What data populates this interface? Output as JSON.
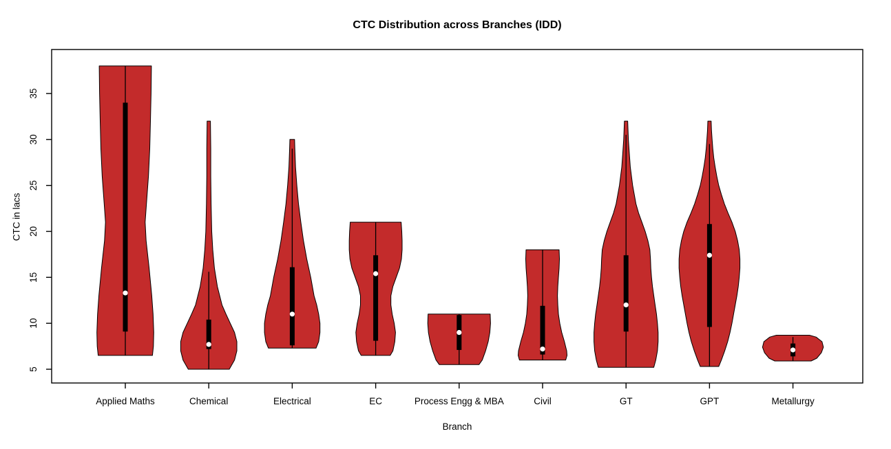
{
  "title": "CTC Distribution across Branches (IDD)",
  "colors": {
    "violin_fill": "#C32B2B",
    "violin_stroke": "#000000",
    "box": "#000000",
    "whisker": "#000000",
    "median_dot": "#FFFFFF",
    "axis": "#000000",
    "background": "#FFFFFF"
  },
  "chart_data": {
    "type": "violin",
    "title": "CTC Distribution across Branches (IDD)",
    "xlabel": "Branch",
    "ylabel": "CTC in lacs",
    "y_ticks": [
      5,
      10,
      15,
      20,
      25,
      30,
      35
    ],
    "ylim": [
      3.5,
      39.5
    ],
    "grid": false,
    "legend": "none",
    "categories": [
      "Applied Maths",
      "Chemical",
      "Electrical",
      "EC",
      "Process Engg & MBA",
      "Civil",
      "GT",
      "GPT",
      "Metallurgy"
    ],
    "series": [
      {
        "name": "Applied Maths",
        "min": 6.5,
        "max": 38,
        "q1": 9.1,
        "median": 13.3,
        "q3": 34,
        "whisker_low": 6.5,
        "whisker_high": 38,
        "density_profile": [
          [
            6.5,
            0.82
          ],
          [
            7.5,
            0.85
          ],
          [
            9,
            0.86
          ],
          [
            11,
            0.84
          ],
          [
            13,
            0.8
          ],
          [
            16,
            0.72
          ],
          [
            19,
            0.63
          ],
          [
            21,
            0.6
          ],
          [
            23,
            0.64
          ],
          [
            26,
            0.7
          ],
          [
            29,
            0.74
          ],
          [
            32,
            0.76
          ],
          [
            35,
            0.78
          ],
          [
            38,
            0.79
          ]
        ]
      },
      {
        "name": "Chemical",
        "min": 5,
        "max": 32,
        "q1": 7.2,
        "median": 7.7,
        "q3": 10.4,
        "whisker_low": 5,
        "whisker_high": 15.6,
        "density_profile": [
          [
            5,
            0.62
          ],
          [
            6,
            0.78
          ],
          [
            7,
            0.85
          ],
          [
            8,
            0.85
          ],
          [
            9,
            0.78
          ],
          [
            10,
            0.65
          ],
          [
            11,
            0.52
          ],
          [
            12,
            0.4
          ],
          [
            14,
            0.26
          ],
          [
            16,
            0.17
          ],
          [
            18,
            0.12
          ],
          [
            20,
            0.09
          ],
          [
            23,
            0.07
          ],
          [
            26,
            0.06
          ],
          [
            29,
            0.06
          ],
          [
            32,
            0.05
          ]
        ]
      },
      {
        "name": "Electrical",
        "min": 7.3,
        "max": 30,
        "q1": 7.6,
        "median": 11,
        "q3": 16.1,
        "whisker_low": 7.3,
        "whisker_high": 29,
        "density_profile": [
          [
            7.3,
            0.72
          ],
          [
            8,
            0.8
          ],
          [
            9,
            0.84
          ],
          [
            10,
            0.84
          ],
          [
            11,
            0.8
          ],
          [
            12,
            0.74
          ],
          [
            13,
            0.66
          ],
          [
            15,
            0.56
          ],
          [
            17,
            0.44
          ],
          [
            19,
            0.34
          ],
          [
            21,
            0.26
          ],
          [
            23,
            0.19
          ],
          [
            25,
            0.14
          ],
          [
            27,
            0.1
          ],
          [
            29,
            0.08
          ],
          [
            30,
            0.07
          ]
        ]
      },
      {
        "name": "EC",
        "min": 6.5,
        "max": 21,
        "q1": 8.1,
        "median": 15.4,
        "q3": 17.4,
        "whisker_low": 6.5,
        "whisker_high": 21,
        "density_profile": [
          [
            6.5,
            0.44
          ],
          [
            7,
            0.52
          ],
          [
            8,
            0.58
          ],
          [
            9,
            0.6
          ],
          [
            10,
            0.56
          ],
          [
            11,
            0.5
          ],
          [
            12,
            0.46
          ],
          [
            13,
            0.46
          ],
          [
            14,
            0.52
          ],
          [
            15,
            0.62
          ],
          [
            16,
            0.72
          ],
          [
            17,
            0.78
          ],
          [
            18,
            0.8
          ],
          [
            19,
            0.8
          ],
          [
            20,
            0.79
          ],
          [
            21,
            0.77
          ]
        ]
      },
      {
        "name": "Process Engg & MBA",
        "min": 5.5,
        "max": 11,
        "q1": 7.1,
        "median": 9,
        "q3": 10.9,
        "whisker_low": 5.5,
        "whisker_high": 11,
        "density_profile": [
          [
            5.5,
            0.6
          ],
          [
            6,
            0.7
          ],
          [
            7,
            0.8
          ],
          [
            8,
            0.88
          ],
          [
            9,
            0.93
          ],
          [
            10,
            0.95
          ],
          [
            11,
            0.94
          ]
        ]
      },
      {
        "name": "Civil",
        "min": 6,
        "max": 18,
        "q1": 6.6,
        "median": 7.2,
        "q3": 11.9,
        "whisker_low": 6,
        "whisker_high": 18,
        "density_profile": [
          [
            6,
            0.7
          ],
          [
            6.5,
            0.74
          ],
          [
            7,
            0.73
          ],
          [
            8,
            0.66
          ],
          [
            9,
            0.58
          ],
          [
            10,
            0.52
          ],
          [
            11,
            0.48
          ],
          [
            12,
            0.46
          ],
          [
            13,
            0.45
          ],
          [
            14,
            0.46
          ],
          [
            15,
            0.48
          ],
          [
            16,
            0.5
          ],
          [
            17,
            0.51
          ],
          [
            18,
            0.5
          ]
        ]
      },
      {
        "name": "GT",
        "min": 5.2,
        "max": 32,
        "q1": 9.1,
        "median": 12,
        "q3": 17.4,
        "whisker_low": 5.2,
        "whisker_high": 30.5,
        "density_profile": [
          [
            5.2,
            0.84
          ],
          [
            6,
            0.9
          ],
          [
            7,
            0.95
          ],
          [
            8,
            0.97
          ],
          [
            9,
            0.97
          ],
          [
            10,
            0.95
          ],
          [
            11,
            0.92
          ],
          [
            12,
            0.88
          ],
          [
            13,
            0.84
          ],
          [
            14,
            0.8
          ],
          [
            15,
            0.77
          ],
          [
            16,
            0.75
          ],
          [
            17,
            0.74
          ],
          [
            18,
            0.72
          ],
          [
            19,
            0.66
          ],
          [
            20,
            0.58
          ],
          [
            21,
            0.48
          ],
          [
            22,
            0.38
          ],
          [
            23,
            0.3
          ],
          [
            25,
            0.2
          ],
          [
            27,
            0.13
          ],
          [
            29,
            0.09
          ],
          [
            30,
            0.07
          ],
          [
            31,
            0.06
          ],
          [
            32,
            0.05
          ]
        ]
      },
      {
        "name": "GPT",
        "min": 5.3,
        "max": 32,
        "q1": 9.6,
        "median": 17.4,
        "q3": 20.8,
        "whisker_low": 5.3,
        "whisker_high": 29.5,
        "density_profile": [
          [
            5.3,
            0.28
          ],
          [
            6,
            0.36
          ],
          [
            7,
            0.46
          ],
          [
            8,
            0.55
          ],
          [
            9,
            0.62
          ],
          [
            10,
            0.68
          ],
          [
            11,
            0.73
          ],
          [
            12,
            0.78
          ],
          [
            13,
            0.83
          ],
          [
            14,
            0.87
          ],
          [
            15,
            0.9
          ],
          [
            16,
            0.92
          ],
          [
            17,
            0.92
          ],
          [
            18,
            0.9
          ],
          [
            19,
            0.85
          ],
          [
            20,
            0.78
          ],
          [
            21,
            0.68
          ],
          [
            22,
            0.56
          ],
          [
            23,
            0.45
          ],
          [
            24,
            0.36
          ],
          [
            25,
            0.28
          ],
          [
            26,
            0.22
          ],
          [
            27,
            0.17
          ],
          [
            28,
            0.13
          ],
          [
            29,
            0.1
          ],
          [
            30,
            0.08
          ],
          [
            31,
            0.06
          ],
          [
            32,
            0.05
          ]
        ]
      },
      {
        "name": "Metallurgy",
        "min": 5.9,
        "max": 8.7,
        "q1": 6.4,
        "median": 7.1,
        "q3": 7.8,
        "whisker_low": 5.9,
        "whisker_high": 8.5,
        "density_profile": [
          [
            5.9,
            0.55
          ],
          [
            6.2,
            0.72
          ],
          [
            6.8,
            0.86
          ],
          [
            7.4,
            0.92
          ],
          [
            8,
            0.88
          ],
          [
            8.5,
            0.7
          ],
          [
            8.7,
            0.5
          ]
        ]
      }
    ]
  }
}
